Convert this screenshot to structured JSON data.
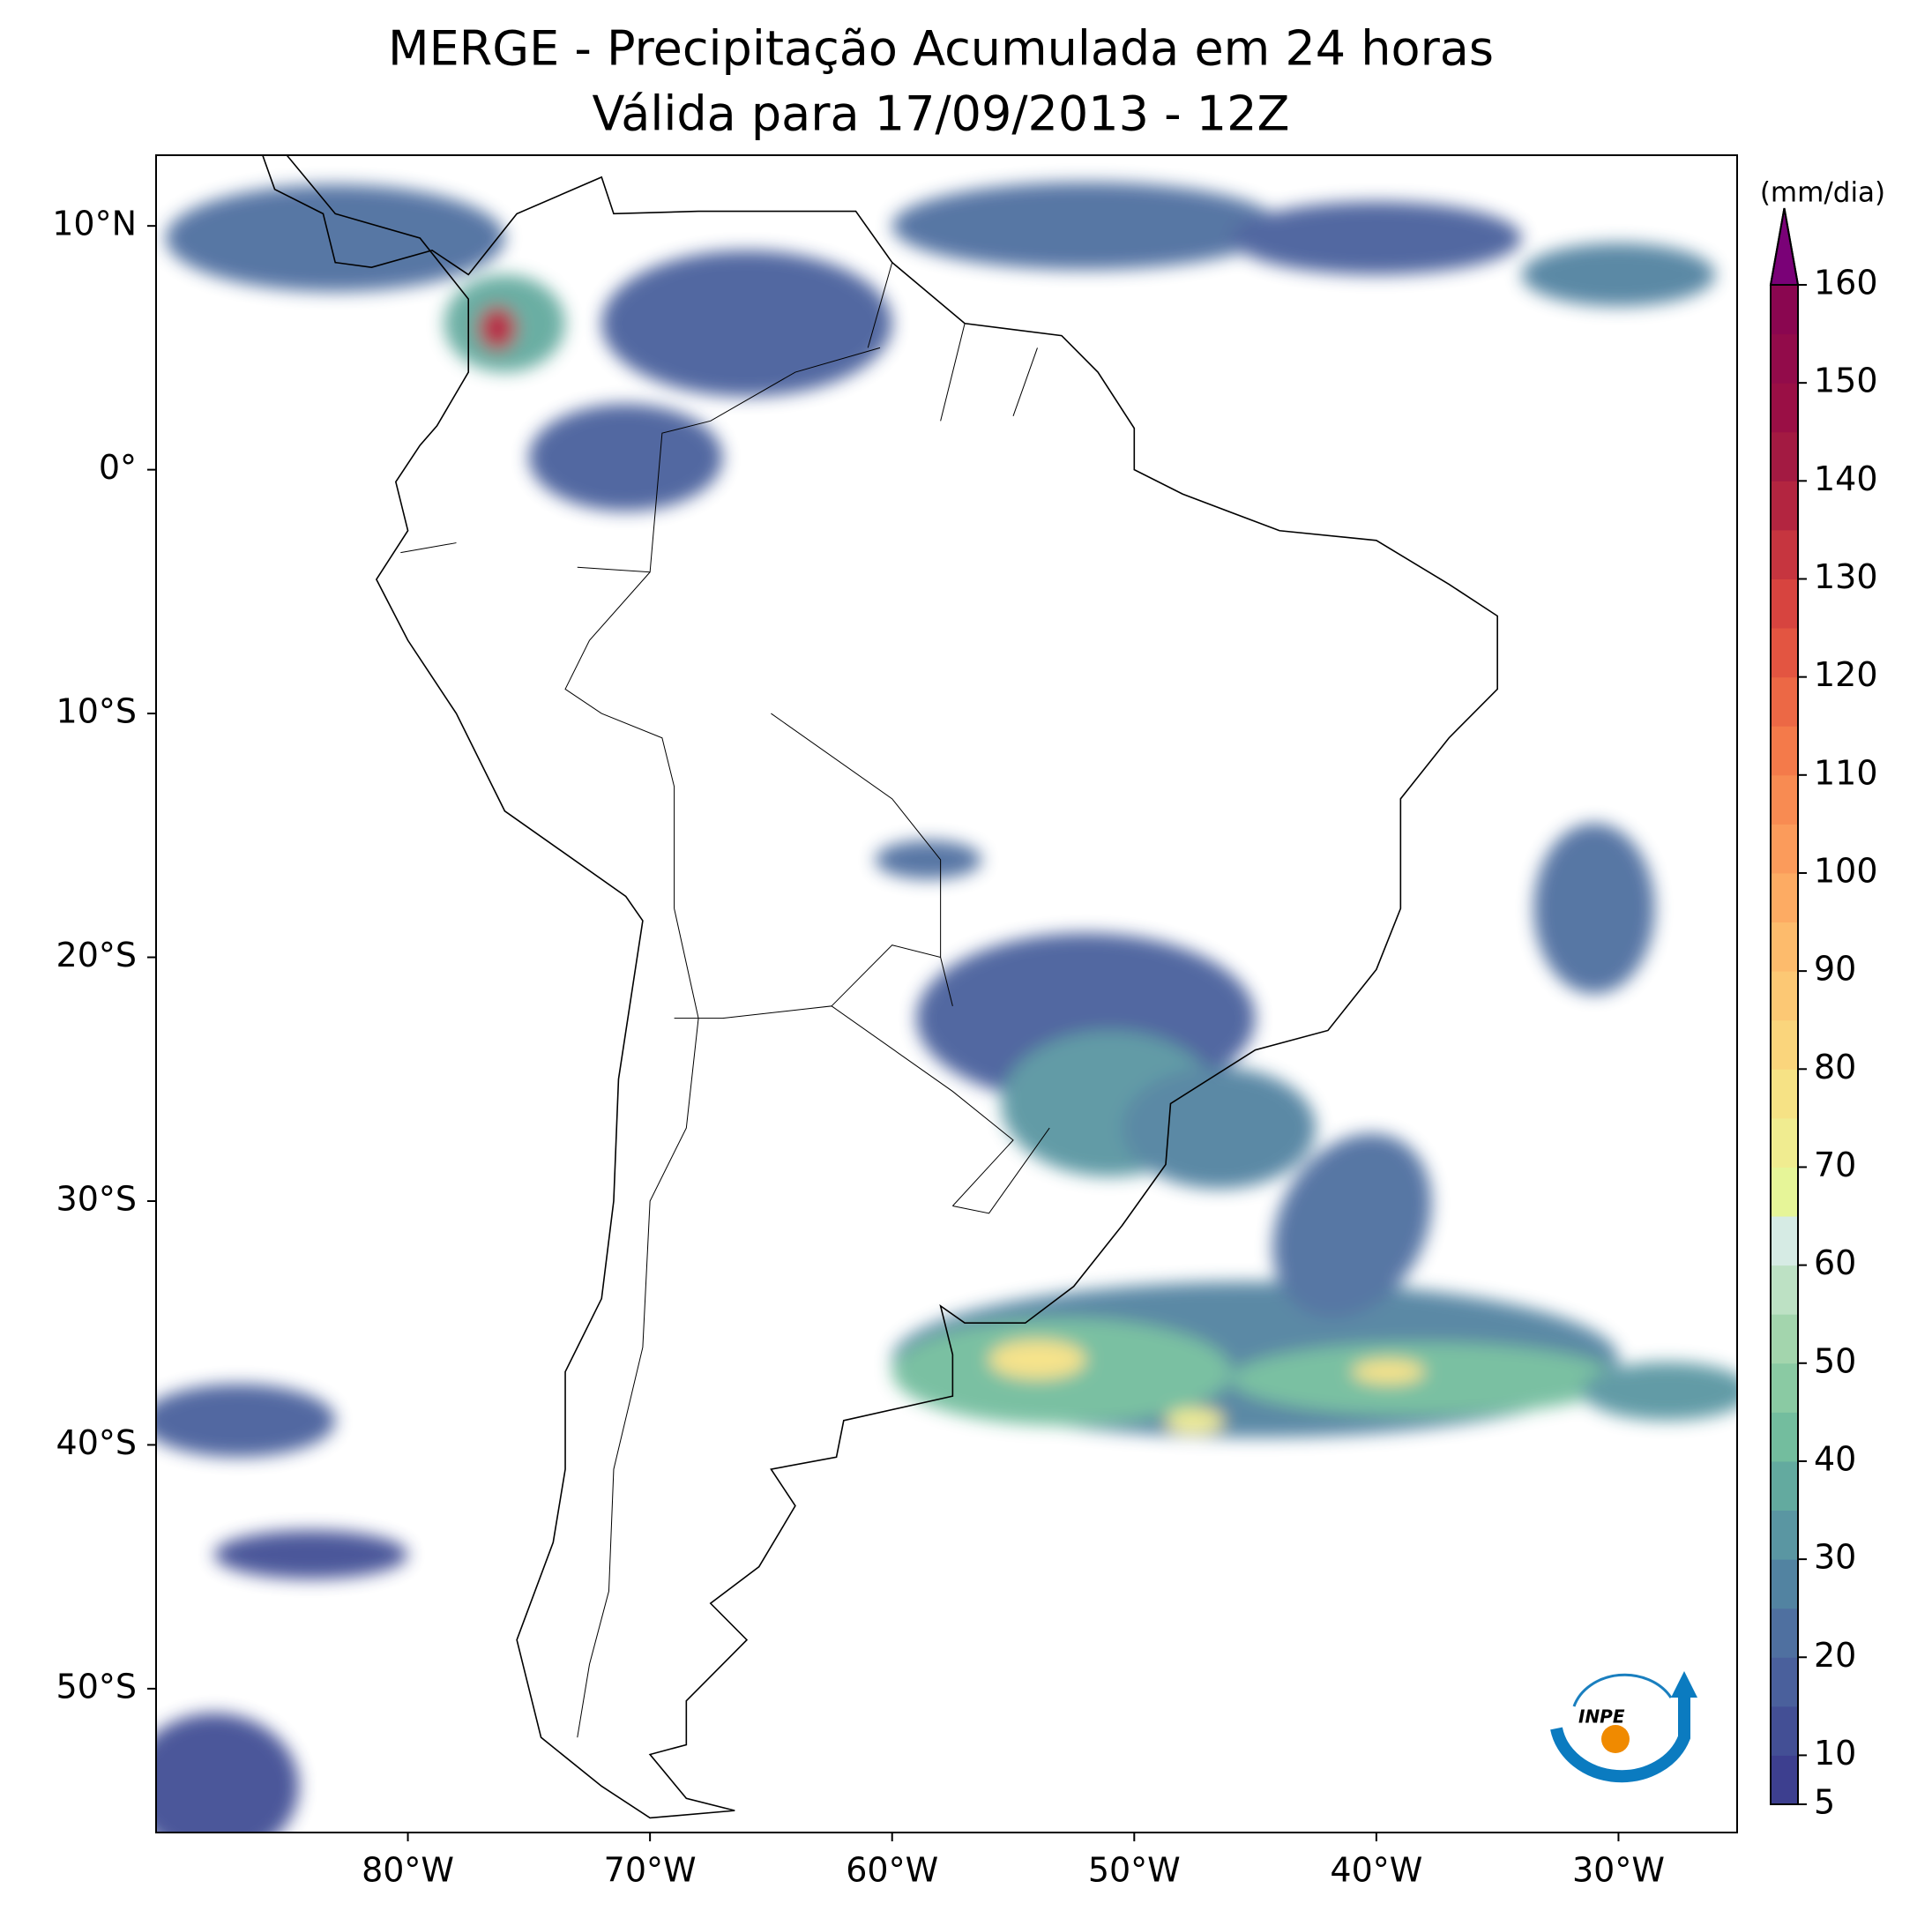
{
  "title": [
    "MERGE - Precipitação Acumulada em 24 horas",
    "Válida para 17/09/2013 - 12Z"
  ],
  "map": {
    "lon_range": [
      -90.4,
      -25.1
    ],
    "lat_range": [
      -55.9,
      12.9
    ],
    "xticks": [
      {
        "value": -80,
        "label": "80°W"
      },
      {
        "value": -70,
        "label": "70°W"
      },
      {
        "value": -60,
        "label": "60°W"
      },
      {
        "value": -50,
        "label": "50°W"
      },
      {
        "value": -40,
        "label": "40°W"
      },
      {
        "value": -30,
        "label": "30°W"
      }
    ],
    "yticks": [
      {
        "value": 10,
        "label": "10°N"
      },
      {
        "value": 0,
        "label": "0°"
      },
      {
        "value": -10,
        "label": "10°S"
      },
      {
        "value": -20,
        "label": "20°S"
      },
      {
        "value": -30,
        "label": "30°S"
      },
      {
        "value": -40,
        "label": "40°S"
      },
      {
        "value": -50,
        "label": "50°S"
      }
    ]
  },
  "colorbar": {
    "label": "(mm/dia)",
    "min": 5,
    "max": 160,
    "step": 5,
    "ticks": [
      5,
      10,
      20,
      30,
      40,
      50,
      60,
      70,
      80,
      90,
      100,
      110,
      120,
      130,
      140,
      150,
      160
    ],
    "colors": [
      "#3d3f8f",
      "#434f95",
      "#4a609c",
      "#4f70a0",
      "#5283a1",
      "#5a96a2",
      "#63aa9f",
      "#73bd9e",
      "#8acaa3",
      "#a3d5ad",
      "#bde1c4",
      "#d6ebe4",
      "#e6f598",
      "#f0ec90",
      "#f6e285",
      "#fad57c",
      "#fcc874",
      "#fdbb6c",
      "#fdab63",
      "#fb9b5b",
      "#f88b52",
      "#f47a4a",
      "#ec6845",
      "#e35541",
      "#d7443f",
      "#c6353f",
      "#b32540",
      "#a31a42",
      "#9a0f45",
      "#920b4a",
      "#8a0650"
    ],
    "extend_color": "#7a0177"
  },
  "logo": {
    "text": "INPE"
  }
}
